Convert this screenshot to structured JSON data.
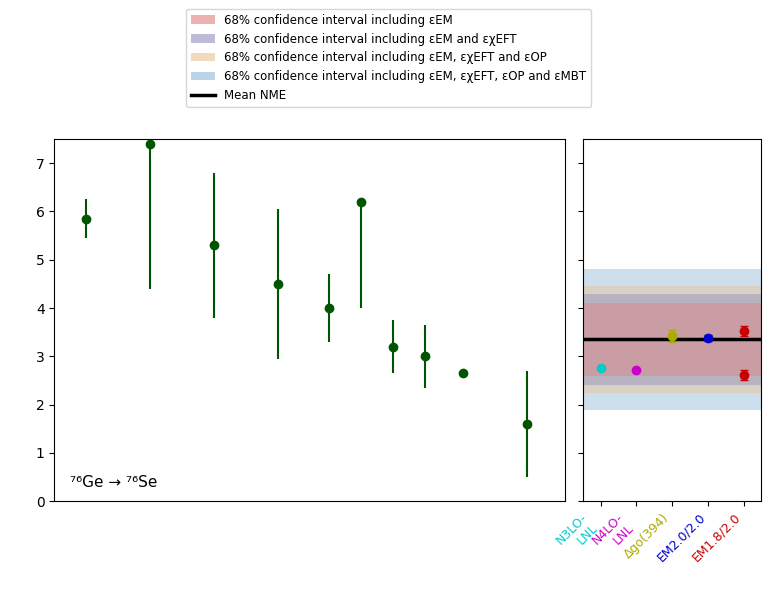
{
  "chart_data": [
    {
      "type": "errorbar",
      "x": [
        1,
        2,
        3,
        4,
        4.8,
        5.3,
        5.8,
        6.3,
        6.9,
        7.9
      ],
      "values": [
        5.85,
        7.4,
        5.3,
        4.5,
        4.0,
        6.2,
        3.2,
        3.0,
        2.65,
        1.6
      ],
      "errors_low": [
        0.4,
        3.0,
        1.5,
        1.55,
        0.7,
        2.2,
        0.55,
        0.65,
        0.0,
        1.1
      ],
      "errors_high": [
        0.4,
        0.0,
        1.5,
        1.55,
        0.7,
        0.0,
        0.55,
        0.65,
        0.0,
        1.1
      ],
      "color": "#005500",
      "marker": "o",
      "line_style": "none",
      "xlim": [
        0.5,
        8.5
      ],
      "ylim": [
        0,
        7.5
      ],
      "yticks": [
        0,
        1,
        2,
        3,
        4,
        5,
        6,
        7
      ],
      "tick_labels": "y",
      "annotation": "⁷⁶Ge → ⁷⁶Se"
    },
    {
      "type": "errorbar",
      "categories": [
        "N3LO-\nLNL",
        "N4LO-\nLNL",
        "Δgo(394)",
        "EM2.0/2.0",
        "EM1.8/2.0"
      ],
      "values": [
        [
          2.75
        ],
        [
          2.72
        ],
        [
          3.42
        ],
        [
          3.38
        ],
        [
          3.52,
          2.62
        ]
      ],
      "errors": [
        [
          0.0
        ],
        [
          0.0
        ],
        [
          0.12
        ],
        [
          0.06
        ],
        [
          0.1,
          0.1
        ]
      ],
      "colors": [
        "#00cccc",
        "#cc00cc",
        "#aaaa00",
        "#0000cc",
        "#cc0000"
      ],
      "marker": "o",
      "line_style": "none",
      "ylim": [
        0,
        7.5
      ],
      "yticks": [
        0,
        1,
        2,
        3,
        4,
        5,
        6,
        7
      ],
      "tick_labels": "x",
      "bands": [
        {
          "name": "68% confidence interval including εEM",
          "color": "#e08080",
          "range": [
            2.6,
            4.1
          ]
        },
        {
          "name": "68% confidence interval including εEM and εχEFT",
          "color": "#9090c0",
          "range": [
            2.4,
            4.3
          ]
        },
        {
          "name": "68% confidence interval including εEM, εχEFT and εOP",
          "color": "#e8c090",
          "range": [
            2.25,
            4.45
          ]
        },
        {
          "name": "68% confidence interval including εEM, εχEFT, εOP and εMBT",
          "color": "#90b8d8",
          "range": [
            1.9,
            4.8
          ]
        }
      ],
      "mean": {
        "name": "Mean NME",
        "value": 3.35,
        "color": "#000000"
      },
      "legend": "upper center"
    }
  ]
}
